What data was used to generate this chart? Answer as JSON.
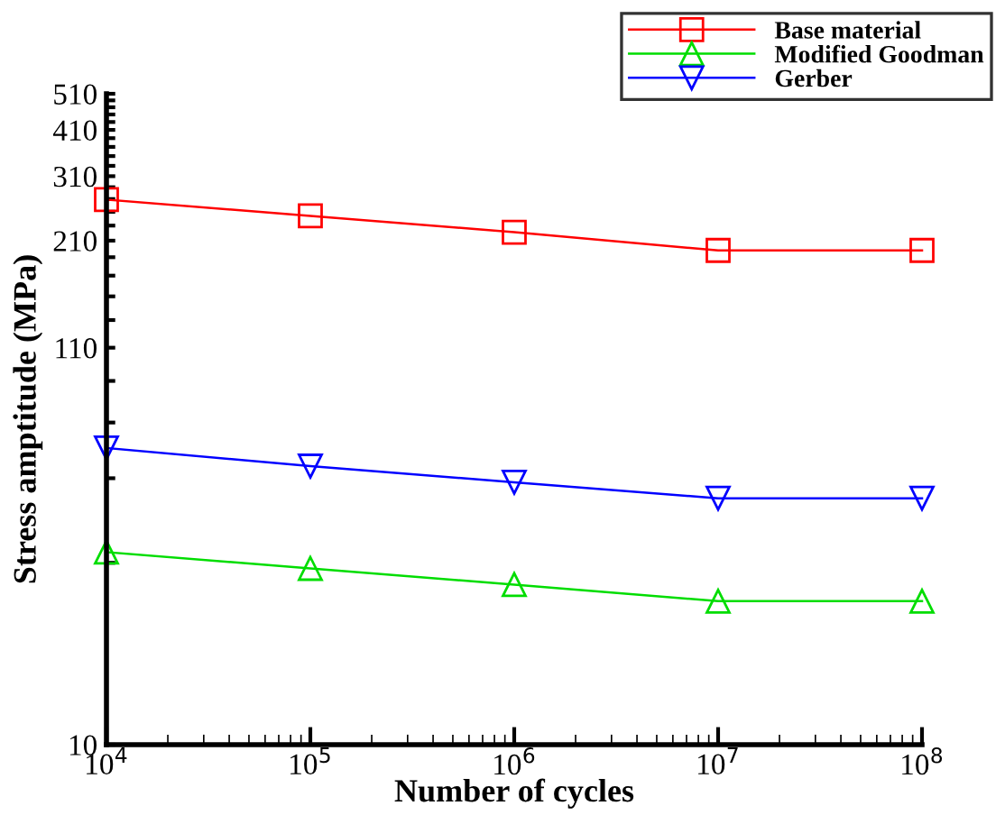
{
  "chart_data": {
    "type": "line",
    "xlabel": "Number of cycles",
    "ylabel": "Stress amptitude (MPa)",
    "log": "xy",
    "x": [
      10000,
      100000,
      1000000,
      10000000,
      100000000
    ],
    "series": [
      {
        "name": "Base material",
        "color": "#ff0000",
        "marker": "square",
        "values": [
          269,
          244,
          221,
          198,
          198
        ]
      },
      {
        "name": "Modified Goodman",
        "color": "#00dd00",
        "marker": "triangle",
        "values": [
          32,
          29,
          26.3,
          23.8,
          23.8
        ]
      },
      {
        "name": "Gerber",
        "color": "#0000ff",
        "marker": "triangle_down",
        "values": [
          60,
          53.8,
          48.8,
          44.3,
          44.3
        ]
      }
    ],
    "xlim": [
      10000,
      100000000
    ],
    "xticks": [
      {
        "value": 10000,
        "label": "10$^{4}$"
      },
      {
        "value": 100000,
        "label": "10$^{5}$"
      },
      {
        "value": 1000000,
        "label": "10$^{6}$"
      },
      {
        "value": 10000000,
        "label": "10$^{7}$"
      },
      {
        "value": 100000000,
        "label": "10$^{8}$"
      }
    ],
    "ylim": [
      10,
      510
    ],
    "yticks": [
      10,
      {
        "value": 30,
        "label": null
      },
      {
        "value": 50,
        "label": null
      },
      {
        "value": 70,
        "label": null
      },
      {
        "value": 90,
        "label": null
      },
      110,
      {
        "value": 130,
        "label": null
      },
      {
        "value": 150,
        "label": null
      },
      {
        "value": 170,
        "label": null
      },
      {
        "value": 190,
        "label": null
      },
      210,
      {
        "value": 230,
        "label": null
      },
      {
        "value": 250,
        "label": null
      },
      {
        "value": 270,
        "label": null
      },
      {
        "value": 290,
        "label": null
      },
      310,
      {
        "value": 330,
        "label": null
      },
      {
        "value": 350,
        "label": null
      },
      {
        "value": 370,
        "label": null
      },
      {
        "value": 390,
        "label": null
      },
      410,
      {
        "value": 430,
        "label": null
      },
      {
        "value": 450,
        "label": null
      },
      {
        "value": 470,
        "label": null
      },
      {
        "value": 490,
        "label": null
      },
      510
    ],
    "grid": false,
    "legend": "top right"
  }
}
